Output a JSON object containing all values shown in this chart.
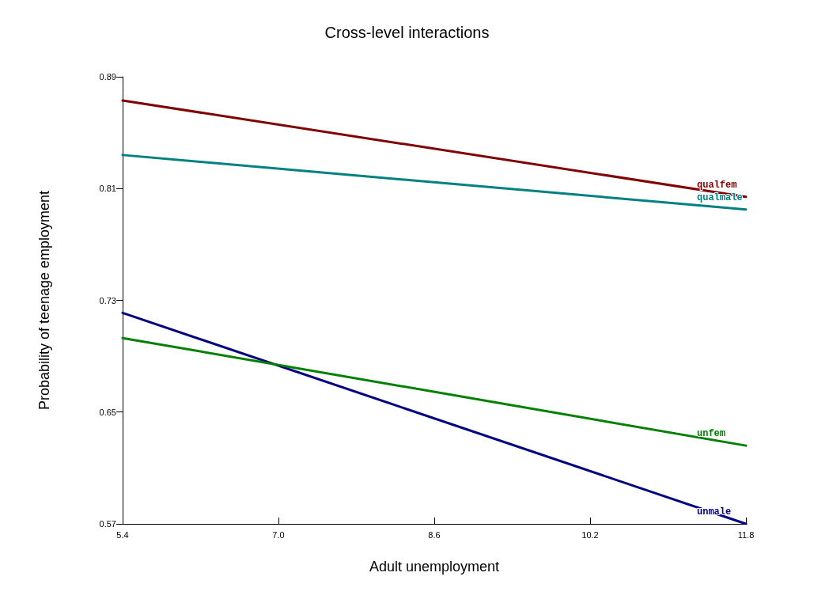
{
  "chart_data": {
    "type": "line",
    "title": "Cross-level interactions",
    "xlabel": "Adult unemployment",
    "ylabel": "Probability of teenage employment",
    "x": [
      5.4,
      11.8
    ],
    "series": [
      {
        "name": "qualfem",
        "color": "#800000",
        "values": [
          0.873,
          0.804
        ]
      },
      {
        "name": "qualmale",
        "color": "#008080",
        "values": [
          0.834,
          0.795
        ]
      },
      {
        "name": "unmale",
        "color": "#000080",
        "values": [
          0.721,
          0.57
        ]
      },
      {
        "name": "unfem",
        "color": "#008000",
        "values": [
          0.703,
          0.626
        ]
      }
    ],
    "xlim": [
      5.4,
      11.8
    ],
    "xticks": [
      5.4,
      {
        "value": 7,
        "label": "7.0"
      },
      8.6,
      10.2,
      11.8
    ],
    "ylim": [
      0.57,
      0.89
    ],
    "yticks": [
      0.57,
      0.65,
      0.73,
      0.81,
      0.89
    ],
    "grid": false,
    "legend": false,
    "marker": "none",
    "line_style": "solid"
  }
}
